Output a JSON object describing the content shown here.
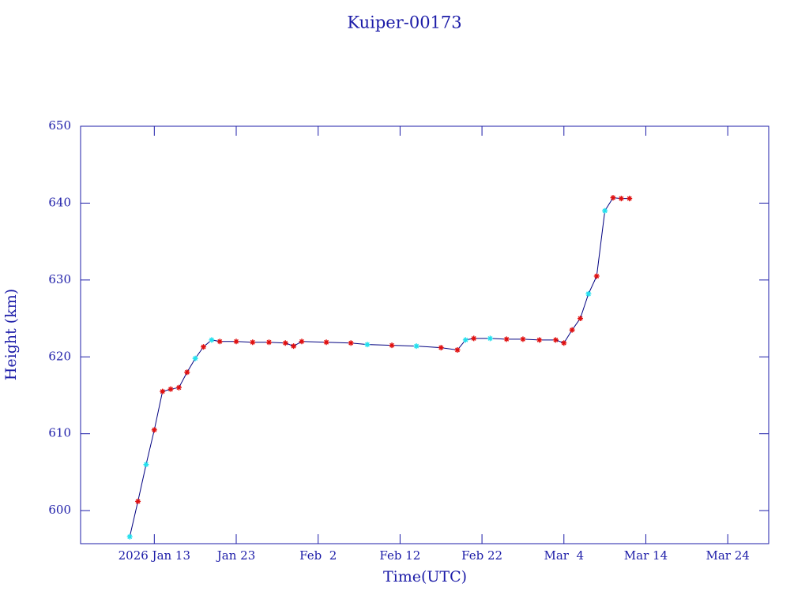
{
  "chart_data": {
    "type": "line",
    "title": "Kuiper-00173",
    "x_label": "Time(UTC)",
    "y_label": "Height (km)",
    "xlim": [
      "2026-01-04",
      "2026-03-29"
    ],
    "xticks": [
      {
        "value": "2026-01-13",
        "label": "2026 Jan 13"
      },
      {
        "value": "2026-01-23",
        "label": "Jan 23"
      },
      {
        "value": "2026-02-02",
        "label": "Feb  2"
      },
      {
        "value": "2026-02-12",
        "label": "Feb 12"
      },
      {
        "value": "2026-02-22",
        "label": "Feb 22"
      },
      {
        "value": "2026-03-04",
        "label": "Mar  4"
      },
      {
        "value": "2026-03-14",
        "label": "Mar 14"
      },
      {
        "value": "2026-03-24",
        "label": "Mar 24"
      }
    ],
    "ylim": [
      595.7,
      650
    ],
    "yticks": [
      600,
      610,
      620,
      630,
      640,
      650
    ],
    "line_color": "#000080",
    "axis_color": "#1c1ca8",
    "x": [
      "2026-01-10",
      "2026-01-11",
      "2026-01-12",
      "2026-01-13",
      "2026-01-14",
      "2026-01-15",
      "2026-01-16",
      "2026-01-17",
      "2026-01-18",
      "2026-01-19",
      "2026-01-20",
      "2026-01-21",
      "2026-01-23",
      "2026-01-25",
      "2026-01-27",
      "2026-01-29",
      "2026-01-30",
      "2026-01-31",
      "2026-02-03",
      "2026-02-06",
      "2026-02-08",
      "2026-02-11",
      "2026-02-14",
      "2026-02-17",
      "2026-02-19",
      "2026-02-20",
      "2026-02-21",
      "2026-02-23",
      "2026-02-25",
      "2026-02-27",
      "2026-03-01",
      "2026-03-03",
      "2026-03-04",
      "2026-03-05",
      "2026-03-06",
      "2026-03-07",
      "2026-03-08",
      "2026-03-09",
      "2026-03-10",
      "2026-03-11",
      "2026-03-12"
    ],
    "values": [
      596.6,
      601.2,
      606.0,
      610.5,
      615.5,
      615.8,
      616.0,
      618.0,
      619.8,
      621.3,
      622.2,
      622.0,
      622.0,
      621.9,
      621.9,
      621.8,
      621.4,
      622.0,
      621.9,
      621.8,
      621.6,
      621.5,
      621.4,
      621.2,
      620.9,
      622.2,
      622.4,
      622.4,
      622.3,
      622.3,
      622.2,
      622.2,
      621.8,
      623.5,
      625.0,
      628.2,
      630.5,
      639.0,
      640.7,
      640.6,
      640.6
    ],
    "marker_colors": [
      "#22e0ee",
      "#e01010",
      "#22e0ee",
      "#e01010",
      "#e01010",
      "#e01010",
      "#e01010",
      "#e01010",
      "#22e0ee",
      "#e01010",
      "#22e0ee",
      "#e01010",
      "#e01010",
      "#e01010",
      "#e01010",
      "#e01010",
      "#e01010",
      "#e01010",
      "#e01010",
      "#e01010",
      "#22e0ee",
      "#e01010",
      "#22e0ee",
      "#e01010",
      "#e01010",
      "#22e0ee",
      "#e01010",
      "#22e0ee",
      "#e01010",
      "#e01010",
      "#e01010",
      "#e01010",
      "#e01010",
      "#e01010",
      "#e01010",
      "#22e0ee",
      "#e01010",
      "#22e0ee",
      "#e01010",
      "#e01010",
      "#e01010"
    ]
  }
}
